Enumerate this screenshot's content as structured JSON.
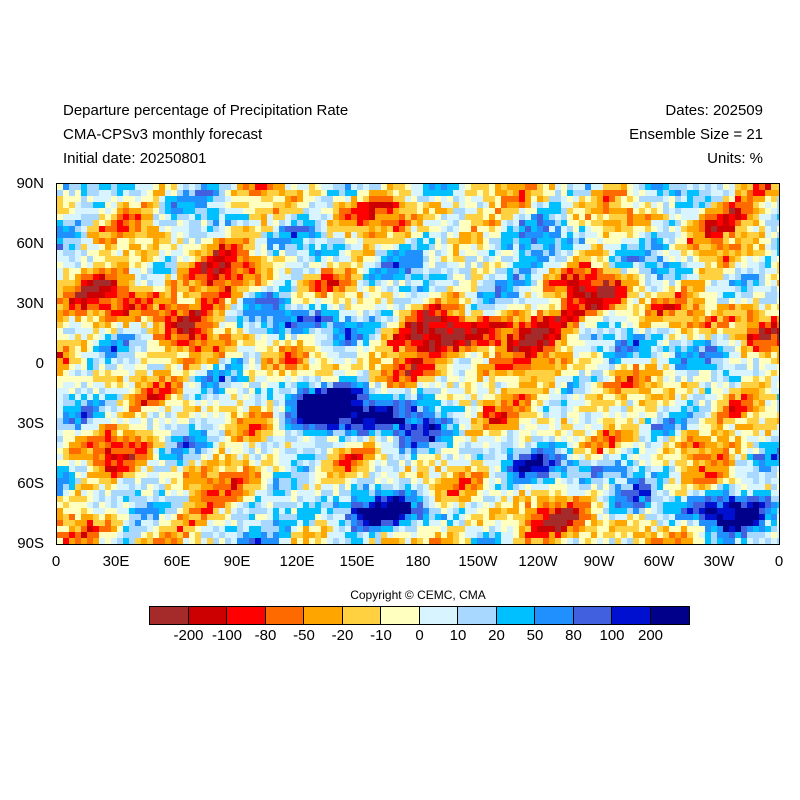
{
  "header": {
    "title": "Departure percentage of Precipitation Rate",
    "model": "CMA-CPSv3 monthly forecast",
    "initial_date": "Initial date: 20250801",
    "dates": "Dates: 202509",
    "ensemble": "Ensemble Size = 21",
    "units": "Units: %"
  },
  "map": {
    "lat_labels": [
      "90N",
      "60N",
      "30N",
      "0",
      "30S",
      "60S",
      "90S"
    ],
    "lon_labels": [
      "0",
      "30E",
      "60E",
      "90E",
      "120E",
      "150E",
      "180",
      "150W",
      "120W",
      "90W",
      "60W",
      "30W",
      "0"
    ]
  },
  "copyright": "Copyright © CEMC, CMA",
  "colorbar": {
    "colors": [
      "#a52a2a",
      "#cc0000",
      "#ff0000",
      "#ff6a00",
      "#ffa500",
      "#ffd040",
      "#ffffc0",
      "#d8f4ff",
      "#a8d8ff",
      "#00c0ff",
      "#2090ff",
      "#4060e0",
      "#0010d0",
      "#00008b"
    ],
    "labels": [
      "-200",
      "-100",
      "-80",
      "-50",
      "-20",
      "-10",
      "0",
      "10",
      "20",
      "50",
      "80",
      "100",
      "200"
    ]
  }
}
